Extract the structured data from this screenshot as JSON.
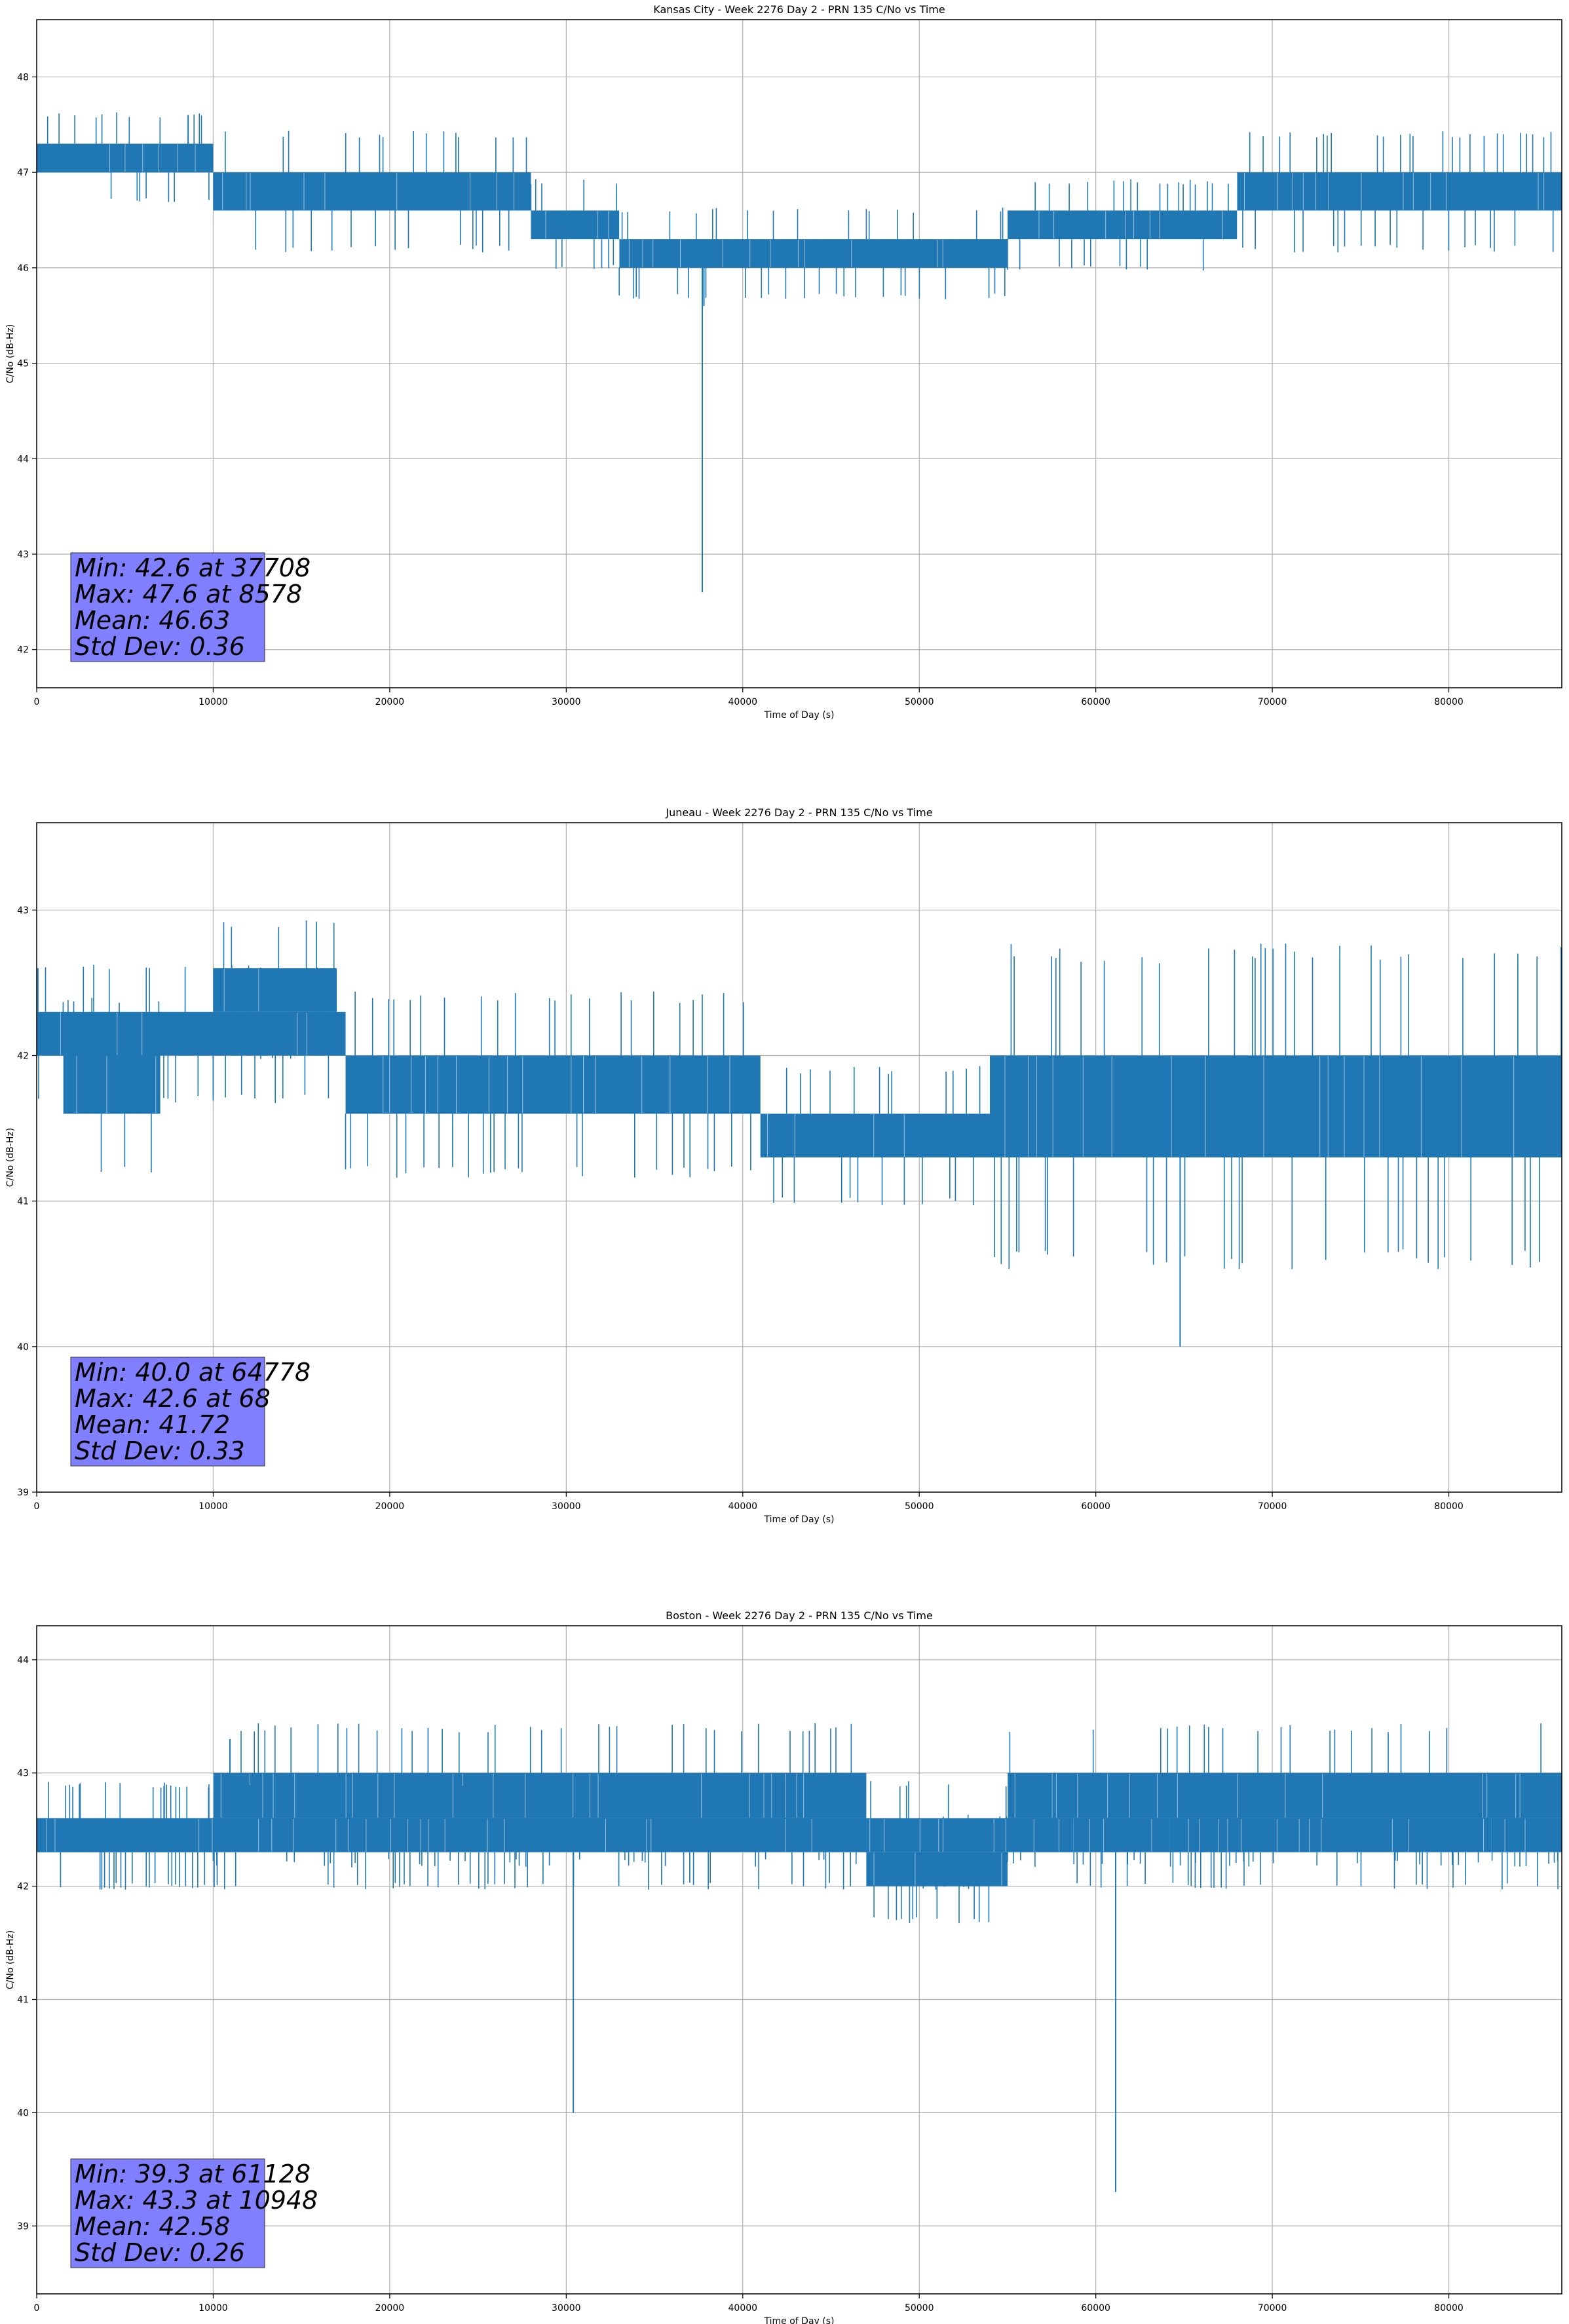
{
  "chart_data": [
    {
      "type": "line",
      "title": "Kansas City - Week 2276 Day 2 - PRN 135 C/No vs Time",
      "xlabel": "Time of Day (s)",
      "ylabel": "C/No (dB-Hz)",
      "xlim": [
        0,
        86400
      ],
      "ylim": [
        41.6,
        48.6
      ],
      "xticks": [
        0,
        10000,
        20000,
        30000,
        40000,
        50000,
        60000,
        70000,
        80000
      ],
      "yticks": [
        42,
        43,
        44,
        45,
        46,
        47,
        48
      ],
      "grid": true,
      "line_color": "#1f77b4",
      "band_segments": [
        {
          "x": [
            0,
            10000
          ],
          "low": 47.0,
          "high": 47.3
        },
        {
          "x": [
            10000,
            28000
          ],
          "low": 46.6,
          "high": 47.0
        },
        {
          "x": [
            28000,
            33000
          ],
          "low": 46.3,
          "high": 46.6
        },
        {
          "x": [
            33000,
            55000
          ],
          "low": 46.0,
          "high": 46.3
        },
        {
          "x": [
            55000,
            68000
          ],
          "low": 46.3,
          "high": 46.6
        },
        {
          "x": [
            68000,
            86400
          ],
          "low": 46.6,
          "high": 47.0
        }
      ],
      "spikes": [
        {
          "x": 8578,
          "y": 47.6
        },
        {
          "x": 37708,
          "y": 42.6
        },
        {
          "x": 37800,
          "y": 45.6
        }
      ],
      "stats": {
        "min": "Min: 42.6 at 37708",
        "max": "Max: 47.6 at 8578",
        "mean": "Mean: 46.63",
        "std": "Std Dev: 0.36"
      },
      "stats_box_color": "#8080ff"
    },
    {
      "type": "line",
      "title": "Juneau - Week 2276 Day 2 - PRN 135 C/No vs Time",
      "xlabel": "Time of Day (s)",
      "ylabel": "C/No (dB-Hz)",
      "xlim": [
        0,
        86400
      ],
      "ylim": [
        39.0,
        43.6
      ],
      "xticks": [
        0,
        10000,
        20000,
        30000,
        40000,
        50000,
        60000,
        70000,
        80000
      ],
      "yticks": [
        39,
        40,
        41,
        42,
        43
      ],
      "grid": true,
      "line_color": "#1f77b4",
      "band_segments": [
        {
          "x": [
            0,
            10000
          ],
          "low": 42.0,
          "high": 42.3
        },
        {
          "x": [
            1500,
            7000
          ],
          "low": 41.6,
          "high": 42.0
        },
        {
          "x": [
            10000,
            17000
          ],
          "low": 42.3,
          "high": 42.6
        },
        {
          "x": [
            10000,
            17500
          ],
          "low": 42.0,
          "high": 42.3
        },
        {
          "x": [
            17500,
            41000
          ],
          "low": 41.6,
          "high": 42.0
        },
        {
          "x": [
            41000,
            54000
          ],
          "low": 41.3,
          "high": 41.6
        },
        {
          "x": [
            54000,
            86400
          ],
          "low": 41.3,
          "high": 42.0
        }
      ],
      "spikes": [
        {
          "x": 68,
          "y": 42.6
        },
        {
          "x": 64778,
          "y": 40.0
        }
      ],
      "stats": {
        "min": "Min: 40.0 at 64778",
        "max": "Max: 42.6 at 68",
        "mean": "Mean: 41.72",
        "std": "Std Dev: 0.33"
      },
      "stats_box_color": "#8080ff"
    },
    {
      "type": "line",
      "title": "Boston - Week 2276 Day 2 - PRN 135 C/No vs Time",
      "xlabel": "Time of Day (s)",
      "ylabel": "C/No (dB-Hz)",
      "xlim": [
        0,
        86400
      ],
      "ylim": [
        38.4,
        44.3
      ],
      "xticks": [
        0,
        10000,
        20000,
        30000,
        40000,
        50000,
        60000,
        70000,
        80000
      ],
      "yticks": [
        39,
        40,
        41,
        42,
        43,
        44
      ],
      "grid": true,
      "line_color": "#1f77b4",
      "band_segments": [
        {
          "x": [
            0,
            10000
          ],
          "low": 42.3,
          "high": 42.6
        },
        {
          "x": [
            10000,
            47000
          ],
          "low": 42.6,
          "high": 43.0
        },
        {
          "x": [
            47000,
            55000
          ],
          "low": 42.0,
          "high": 42.3
        },
        {
          "x": [
            0,
            86400
          ],
          "low": 42.3,
          "high": 42.6
        },
        {
          "x": [
            55000,
            86400
          ],
          "low": 42.6,
          "high": 43.0
        }
      ],
      "spikes": [
        {
          "x": 10948,
          "y": 43.3
        },
        {
          "x": 30400,
          "y": 40.0
        },
        {
          "x": 61128,
          "y": 39.3
        }
      ],
      "stats": {
        "min": "Min: 39.3 at 61128",
        "max": "Max: 43.3 at 10948",
        "mean": "Mean: 42.58",
        "std": "Std Dev: 0.26"
      },
      "stats_box_color": "#8080ff"
    }
  ]
}
